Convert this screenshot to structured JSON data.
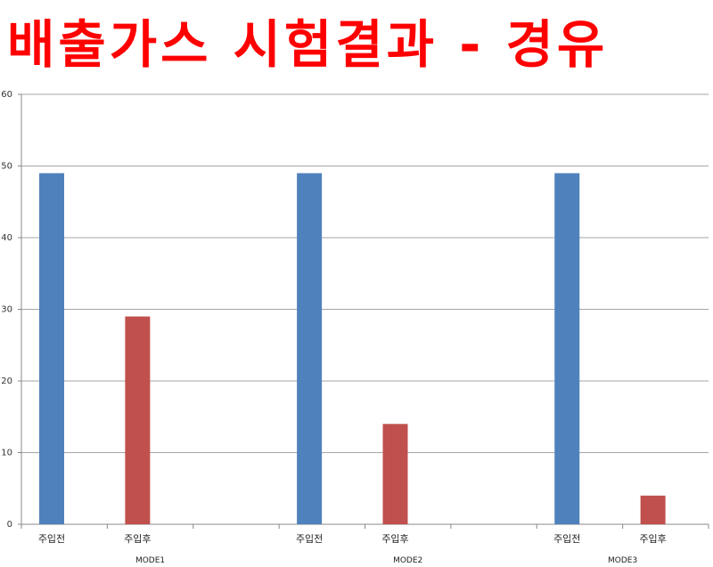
{
  "chart_data": {
    "type": "bar",
    "title": "배출가스 시험결과 - 경유",
    "title_color": "#ff0000",
    "categories": [
      "주입전",
      "주입후",
      "",
      "주입전",
      "주입후",
      "",
      "주입전",
      "주입후"
    ],
    "groups": [
      {
        "label": "MODE1",
        "span": [
          0,
          2
        ]
      },
      {
        "label": "MODE2",
        "span": [
          3,
          5
        ]
      },
      {
        "label": "MODE3",
        "span": [
          6,
          7
        ]
      }
    ],
    "values": [
      49,
      29,
      null,
      49,
      14,
      null,
      49,
      4
    ],
    "colors": {
      "주입전": "#4f81bd",
      "주입후": "#c0504d"
    },
    "ylim": [
      0,
      60
    ],
    "yticks": [
      0,
      10,
      20,
      30,
      40,
      50,
      60
    ],
    "grid": true,
    "xlabel": "",
    "ylabel": ""
  }
}
